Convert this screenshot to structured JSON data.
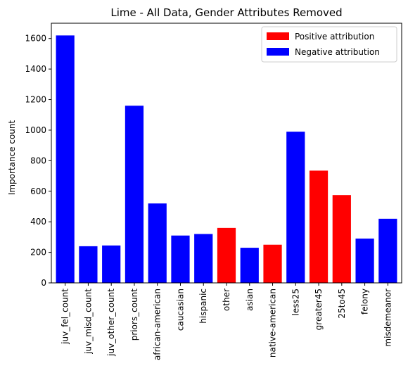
{
  "chart_data": {
    "type": "bar",
    "title": "Lime - All Data, Gender Attributes Removed",
    "xlabel": "",
    "ylabel": "Importance count",
    "ylim": [
      0,
      1700
    ],
    "yticks": [
      0,
      200,
      400,
      600,
      800,
      1000,
      1200,
      1400,
      1600
    ],
    "grid": false,
    "legend_position": "top-right",
    "categories": [
      "juv_fel_count",
      "juv_misd_count",
      "juv_other_count",
      "priors_count",
      "african-american",
      "caucasian",
      "hispanic",
      "other",
      "asian",
      "native-american",
      "less25",
      "greater45",
      "25to45",
      "felony",
      "misdemeanor"
    ],
    "values": [
      1620,
      240,
      245,
      1160,
      520,
      310,
      320,
      360,
      230,
      250,
      990,
      735,
      575,
      290,
      420
    ],
    "attribution": [
      "negative",
      "negative",
      "negative",
      "negative",
      "negative",
      "negative",
      "negative",
      "positive",
      "negative",
      "positive",
      "negative",
      "positive",
      "positive",
      "negative",
      "negative"
    ],
    "legend": [
      {
        "label": "Positive attribution",
        "key": "positive",
        "color": "#ff0000"
      },
      {
        "label": "Negative attribution",
        "key": "negative",
        "color": "#0000ff"
      }
    ]
  }
}
